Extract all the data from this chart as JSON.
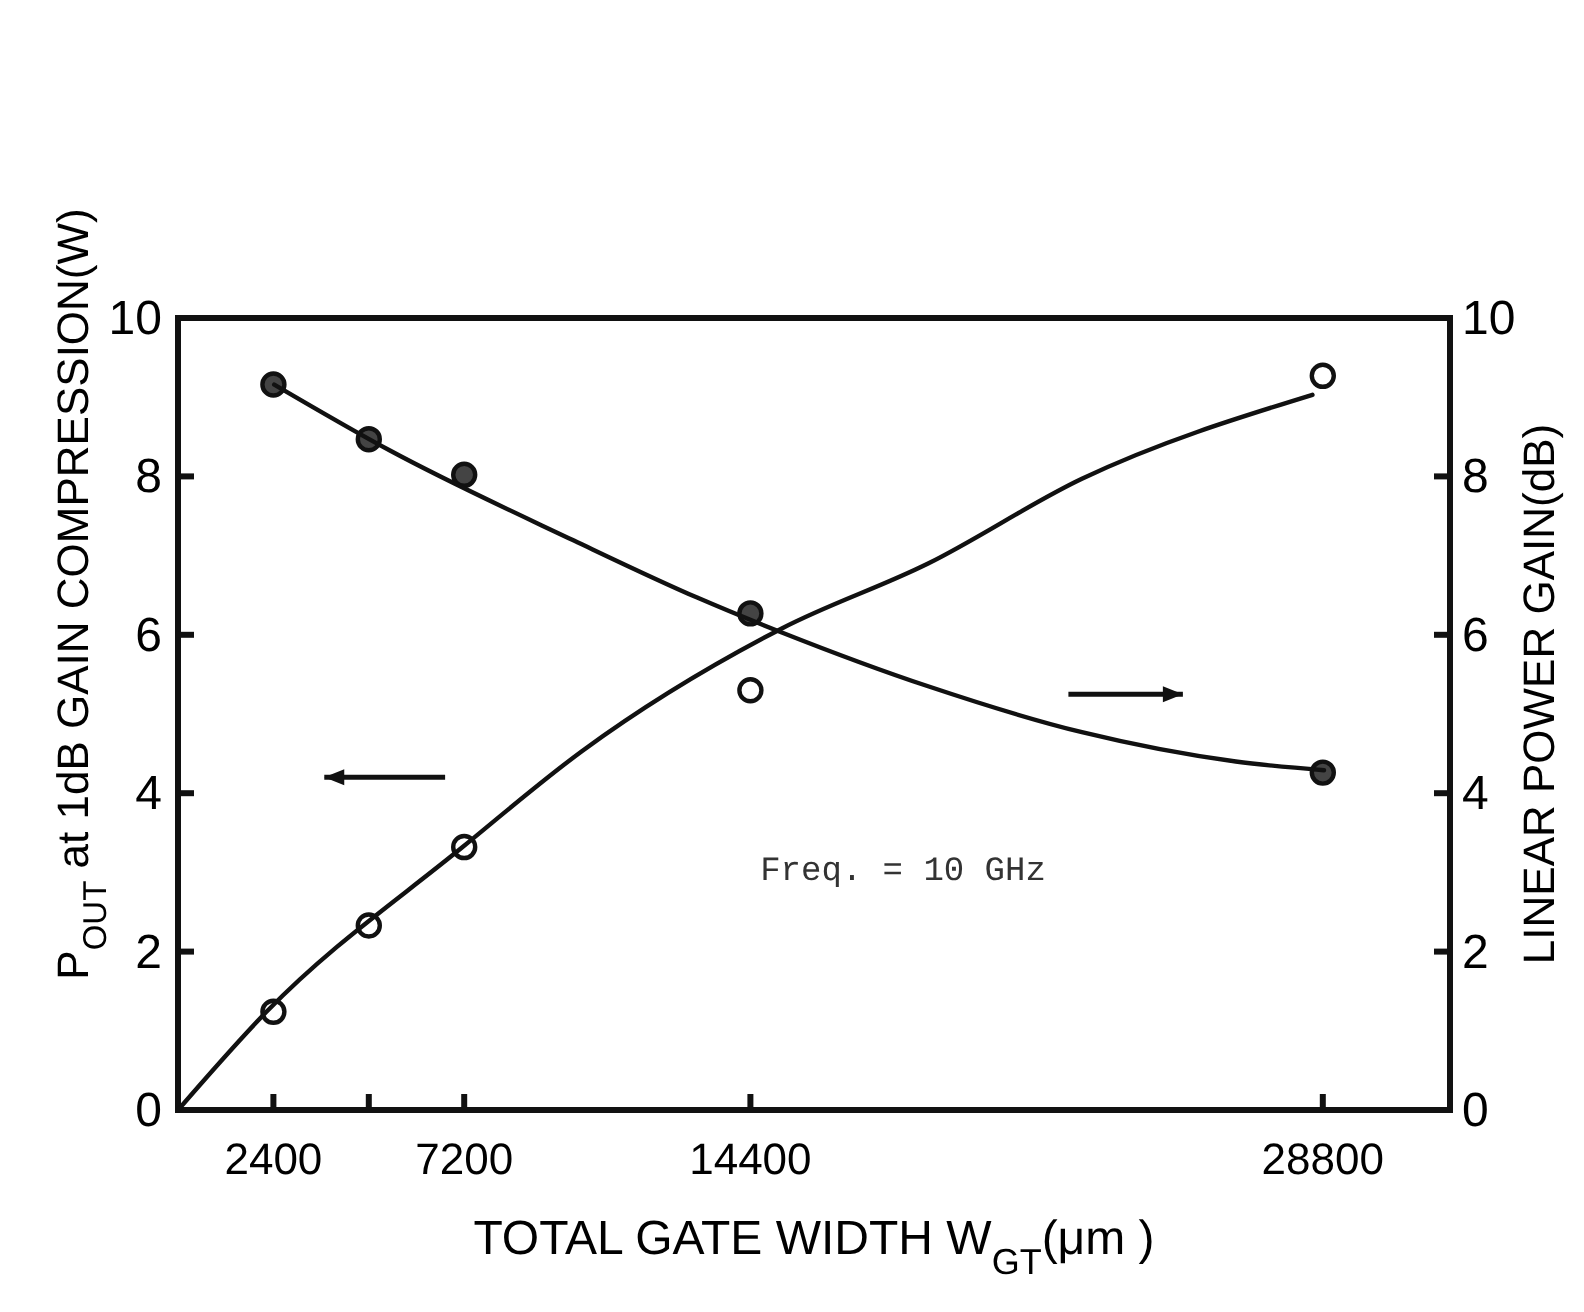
{
  "chart_data": {
    "type": "scatter",
    "xlabel": "TOTAL GATE WIDTH  W$_{GT}$(μm )",
    "ylabel": "P$_{OUT}$ at 1dB GAIN COMPRESSION(W)",
    "y2label": "LINEAR POWER GAIN(dB)",
    "xlim": [
      0,
      32000
    ],
    "xticks": [
      2400,
      {
        "value": 4800,
        "label": null
      },
      7200,
      14400,
      28800
    ],
    "ylim": [
      0,
      10
    ],
    "yticks": [
      0,
      2,
      4,
      6,
      8,
      10
    ],
    "y2lim": [
      0,
      10
    ],
    "y2ticks": [
      0,
      2,
      4,
      6,
      8,
      10
    ],
    "annotations": [
      "Freq. = 10 GHz"
    ],
    "series": [
      {
        "marker": "circle",
        "color": "#111111",
        "x": [
          2400,
          4800,
          7200,
          14400,
          28800
        ],
        "values": [
          1.24,
          2.33,
          3.32,
          5.3,
          9.27
        ]
      },
      {
        "marker": "circle",
        "color": "#444444",
        "axis": "y2",
        "x": [
          2400,
          4800,
          7200,
          14400,
          28800
        ],
        "values": [
          9.16,
          8.47,
          8.02,
          6.27,
          4.26
        ]
      },
      {
        "type": "line",
        "color": "#111111",
        "x": [
          0,
          2225,
          7160,
          10160,
          15190,
          18870,
          22740,
          28540
        ],
        "values": [
          0,
          1.24,
          3.32,
          4.53,
          6.08,
          6.9,
          7.97,
          9.03
        ]
      },
      {
        "type": "line",
        "color": "#111111",
        "axis": "y2",
        "x": [
          2420,
          5320,
          9960,
          13060,
          15190,
          18870,
          22740,
          26610,
          28830
        ],
        "values": [
          9.16,
          8.33,
          7.19,
          6.47,
          6.03,
          5.35,
          4.77,
          4.4,
          4.29
        ]
      }
    ]
  }
}
